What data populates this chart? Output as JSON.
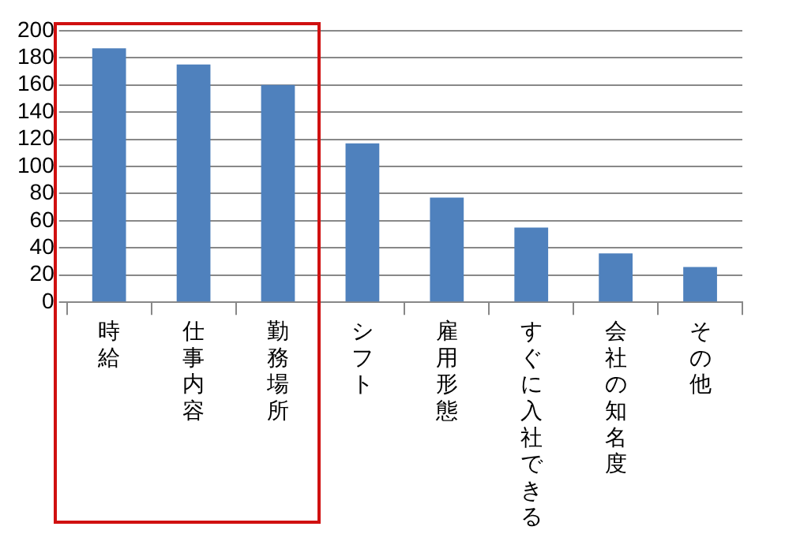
{
  "chart_data": {
    "type": "bar",
    "categories": [
      "時給",
      "仕事内容",
      "勤務場所",
      "シフト",
      "雇用形態",
      "すぐに入社できる",
      "会社の知名度",
      "その他"
    ],
    "values": [
      187,
      175,
      160,
      117,
      77,
      55,
      36,
      26
    ],
    "color": "#4f81bd",
    "ylim": [
      0,
      200
    ],
    "yticks": [
      0,
      20,
      40,
      60,
      80,
      100,
      120,
      140,
      160,
      180,
      200
    ],
    "grid": "y"
  }
}
